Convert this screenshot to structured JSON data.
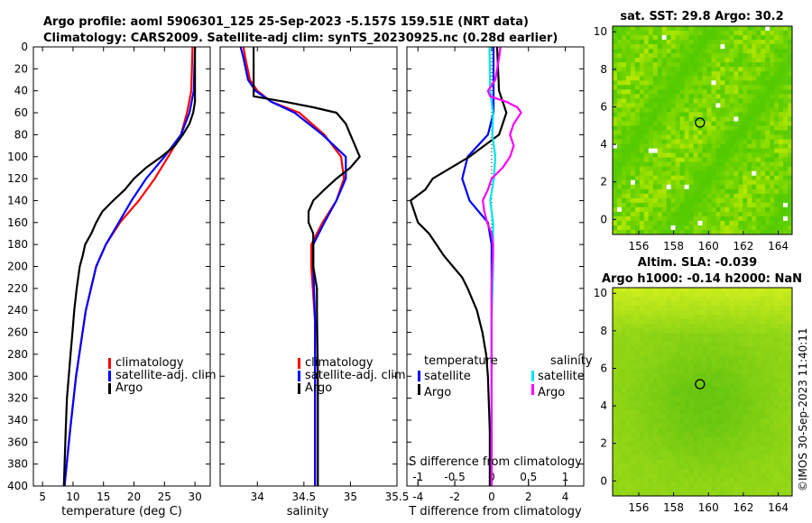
{
  "titles": {
    "line1": "Argo profile: aoml 5906301_125 25-Sep-2023 -5.157S 159.51E (NRT data)",
    "line2": "Climatology: CARS2009. Satellite-adj clim: synTS_20230925.nc (0.28d earlier)"
  },
  "map_titles": {
    "sst": "sat. SST: 29.8 Argo: 30.2",
    "sla": "Altim. SLA: -0.039",
    "h": "Argo h1000: -0.14 h2000: NaN"
  },
  "watermark": "©IMOS 30-Sep-2023 11:40:11",
  "colors": {
    "climatology": "#ff0000",
    "satellite": "#0000ff",
    "argo": "#000000",
    "s_satellite": "#00e5ee",
    "s_argo": "#ff00ff"
  },
  "legends": {
    "temp": [
      "climatology",
      "satellite-adj. clim",
      "Argo"
    ],
    "sal": [
      "climatology",
      "satellite-adj. clim",
      "Argo"
    ],
    "diff_t_header": "temperature",
    "diff_s_header": "salinity",
    "diff_t": [
      "satellite",
      "Argo"
    ],
    "diff_s": [
      "satellite",
      "Argo"
    ]
  },
  "chart_data": [
    {
      "type": "line",
      "name": "temperature",
      "xlabel": "temperature (deg C)",
      "ylabel": "",
      "xlim": [
        3.5,
        32.5
      ],
      "ylim": [
        0,
        400
      ],
      "xticks": [
        5,
        10,
        15,
        20,
        25,
        30
      ],
      "yticks": [
        0,
        20,
        40,
        60,
        80,
        100,
        120,
        140,
        160,
        180,
        200,
        220,
        240,
        260,
        280,
        300,
        320,
        340,
        360,
        380,
        400
      ],
      "series": [
        {
          "name": "climatology",
          "depth": [
            0,
            20,
            40,
            60,
            80,
            100,
            120,
            140,
            160,
            180,
            200,
            240,
            300,
            350,
            400
          ],
          "values": [
            29.6,
            29.5,
            29.4,
            28.7,
            27.7,
            25.6,
            23.4,
            20.8,
            17.7,
            15.4,
            13.8,
            12.1,
            10.5,
            9.5,
            8.6
          ]
        },
        {
          "name": "satellite-adj. clim",
          "depth": [
            0,
            20,
            40,
            60,
            80,
            100,
            120,
            140,
            160,
            180,
            200,
            240,
            300,
            350,
            400
          ],
          "values": [
            30.0,
            29.9,
            29.8,
            29.1,
            27.7,
            25.0,
            22.0,
            19.6,
            17.5,
            15.4,
            13.8,
            12.1,
            10.5,
            9.5,
            8.6
          ]
        },
        {
          "name": "Argo",
          "depth": [
            0,
            20,
            40,
            50,
            60,
            70,
            80,
            90,
            100,
            110,
            120,
            130,
            140,
            150,
            160,
            170,
            180,
            190,
            200,
            220,
            240,
            260,
            280,
            300,
            320,
            350,
            400
          ],
          "values": [
            30.0,
            30.0,
            30.0,
            30.0,
            29.7,
            29.1,
            28.0,
            26.7,
            24.5,
            22.0,
            20.0,
            18.5,
            16.6,
            14.8,
            13.8,
            13.0,
            12.0,
            11.6,
            11.1,
            10.6,
            10.2,
            9.9,
            9.6,
            9.3,
            9.0,
            8.8,
            8.5
          ]
        }
      ]
    },
    {
      "type": "line",
      "name": "salinity",
      "xlabel": "salinity",
      "ylabel": "",
      "xlim": [
        33.6,
        35.5
      ],
      "ylim": [
        0,
        400
      ],
      "xticks": [
        34,
        34.5,
        35,
        35.5
      ],
      "xtick_labels": [
        "34",
        "34.5",
        "35",
        "35.5"
      ],
      "series": [
        {
          "name": "climatology",
          "depth": [
            0,
            10,
            30,
            40,
            50,
            60,
            80,
            100,
            120,
            140,
            160,
            180,
            200,
            250,
            300,
            400
          ],
          "values": [
            33.85,
            33.87,
            33.92,
            34.0,
            34.15,
            34.45,
            34.72,
            34.9,
            34.93,
            34.85,
            34.7,
            34.58,
            34.58,
            34.62,
            34.62,
            34.62
          ]
        },
        {
          "name": "satellite-adj. clim",
          "depth": [
            0,
            10,
            30,
            40,
            50,
            60,
            80,
            100,
            120,
            140,
            160,
            180,
            200,
            250,
            300,
            400
          ],
          "values": [
            33.82,
            33.85,
            33.9,
            33.98,
            34.15,
            34.4,
            34.7,
            34.95,
            34.95,
            34.85,
            34.72,
            34.6,
            34.6,
            34.62,
            34.62,
            34.62
          ]
        },
        {
          "name": "Argo",
          "depth": [
            0,
            10,
            30,
            45,
            50,
            55,
            60,
            70,
            80,
            90,
            100,
            110,
            120,
            130,
            140,
            150,
            160,
            170,
            180,
            200,
            220,
            240,
            300,
            400
          ],
          "values": [
            33.96,
            33.96,
            33.96,
            33.96,
            34.3,
            34.6,
            34.85,
            34.95,
            35.0,
            35.05,
            35.1,
            35.0,
            34.85,
            34.72,
            34.6,
            34.55,
            34.55,
            34.6,
            34.6,
            34.6,
            34.64,
            34.64,
            34.65,
            34.65
          ]
        }
      ]
    },
    {
      "type": "line",
      "name": "difference from climatology",
      "xlabel": "T difference from climatology",
      "top_xlabel": "S difference from climatology",
      "xlim": [
        -4.6,
        5.0
      ],
      "ylim": [
        0,
        400
      ],
      "xticks": [
        -4,
        -2,
        0,
        2,
        4
      ],
      "top_xlim": [
        -1.15,
        1.25
      ],
      "top_xticks": [
        -1,
        -0.5,
        0,
        0.5,
        1
      ],
      "top_xtick_labels": [
        "-1",
        "-0.5",
        "0",
        "0.5",
        "1"
      ],
      "series": [
        {
          "name": "temperature satellite",
          "axis": "T",
          "depth": [
            0,
            40,
            60,
            80,
            100,
            120,
            140,
            160,
            180,
            200,
            240,
            300,
            400
          ],
          "values": [
            0.1,
            0.1,
            0.1,
            -0.2,
            -1.3,
            -1.6,
            -1.2,
            -0.2,
            0.0,
            0.0,
            0.0,
            0.0,
            0.0
          ]
        },
        {
          "name": "temperature Argo",
          "axis": "T",
          "depth": [
            0,
            40,
            60,
            80,
            100,
            110,
            120,
            130,
            140,
            150,
            160,
            170,
            180,
            190,
            200,
            210,
            220,
            240,
            260,
            280,
            300,
            350,
            400
          ],
          "values": [
            0.3,
            0.4,
            0.8,
            0.4,
            -1.2,
            -2.2,
            -3.2,
            -3.6,
            -4.4,
            -4.2,
            -4.0,
            -3.4,
            -3.0,
            -2.6,
            -2.1,
            -1.6,
            -1.3,
            -0.8,
            -0.5,
            -0.3,
            -0.2,
            -0.1,
            -0.1
          ]
        },
        {
          "name": "salinity satellite",
          "axis": "S",
          "depth": [
            0,
            40,
            60,
            80,
            100,
            120,
            140,
            160,
            200,
            250,
            300,
            400
          ],
          "values": [
            -0.03,
            -0.02,
            0.02,
            0.01,
            0.05,
            0.03,
            -0.02,
            0.02,
            0.02,
            0.0,
            0.0,
            0.0
          ]
        },
        {
          "name": "salinity Argo",
          "axis": "S",
          "depth": [
            0,
            10,
            30,
            40,
            45,
            50,
            55,
            60,
            70,
            80,
            90,
            100,
            110,
            120,
            130,
            140,
            150,
            160,
            170,
            180,
            190,
            200,
            220,
            250,
            300,
            400
          ],
          "values": [
            0.12,
            0.1,
            0.05,
            -0.05,
            -0.02,
            0.2,
            0.35,
            0.4,
            0.3,
            0.25,
            0.3,
            0.25,
            0.15,
            0.0,
            -0.05,
            -0.12,
            -0.1,
            -0.06,
            0.0,
            0.02,
            0.02,
            0.01,
            0.0,
            0.0,
            0.0,
            0.0
          ]
        }
      ]
    },
    {
      "type": "heatmap",
      "name": "sat. SST map",
      "title": "sat. SST: 29.8 Argo: 30.2",
      "xlim": [
        154.5,
        164.8
      ],
      "ylim": [
        -0.8,
        10.3
      ],
      "xticks": [
        156,
        158,
        160,
        162,
        164
      ],
      "yticks": [
        0,
        2,
        4,
        6,
        8,
        10
      ],
      "argo_position": [
        159.51,
        5.157
      ]
    },
    {
      "type": "heatmap",
      "name": "altimetry SLA map",
      "title": "Altim. SLA: -0.039",
      "xlim": [
        154.5,
        164.8
      ],
      "ylim": [
        -0.8,
        10.3
      ],
      "xticks": [
        156,
        158,
        160,
        162,
        164
      ],
      "yticks": [
        0,
        2,
        4,
        6,
        8,
        10
      ],
      "argo_position": [
        159.51,
        5.157
      ]
    }
  ]
}
